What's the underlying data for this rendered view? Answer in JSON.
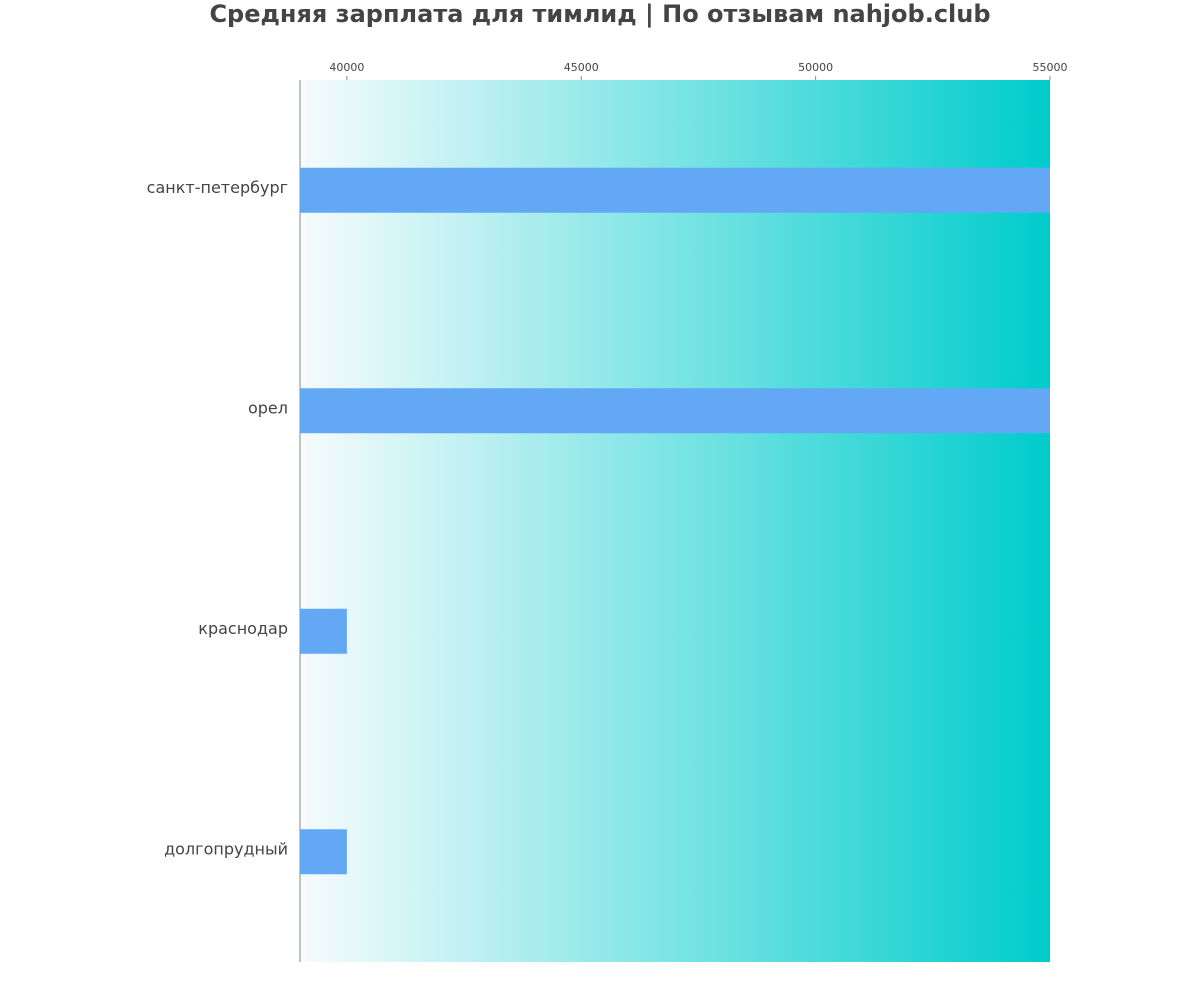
{
  "chart_data": {
    "type": "barh",
    "title": "Средняя зарплата для тимлид | По отзывам nahjob.club",
    "categories": [
      "санкт-петербург",
      "орел",
      "краснодар",
      "долгопрудный"
    ],
    "values": [
      55000,
      55000,
      40000,
      40000
    ],
    "color": "#62a8f5",
    "xlim": [
      39000,
      55000
    ],
    "xticks": [
      40000,
      45000,
      50000,
      55000
    ],
    "background_gradient": [
      "#f7fbfd",
      "#00cccc"
    ]
  }
}
